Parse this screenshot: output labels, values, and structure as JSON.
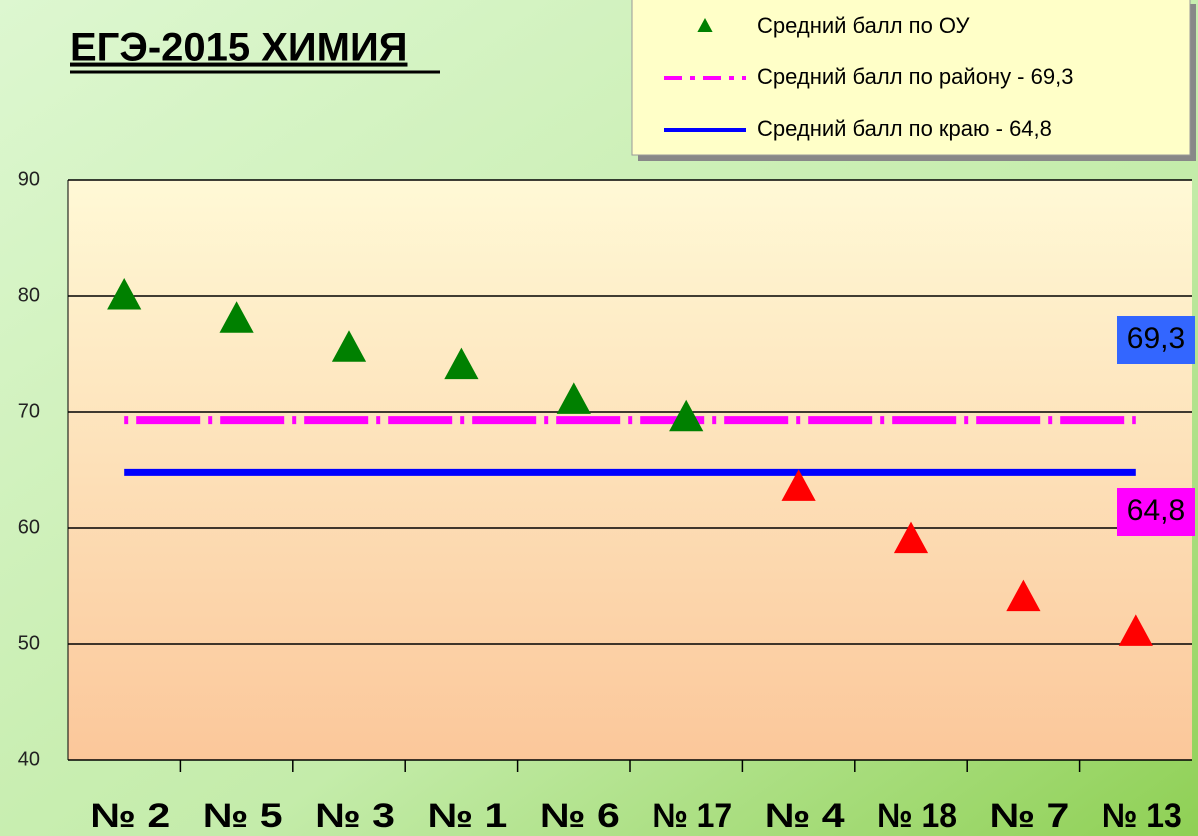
{
  "chart_data": {
    "type": "scatter",
    "title": "ЕГЭ-2015 ХИМИЯ",
    "categories": [
      "№ 2",
      "№ 5",
      "№ 3",
      "№ 1",
      "№ 6",
      "№ 17",
      "№ 4",
      "№ 18",
      "№ 7",
      "№ 13"
    ],
    "series": [
      {
        "name": "Средний балл по ОУ",
        "color": "#008000",
        "colors": [
          "#008000",
          "#008000",
          "#008000",
          "#008000",
          "#008000",
          "#008000",
          "#ff0000",
          "#ff0000",
          "#ff0000",
          "#ff0000"
        ],
        "values": [
          80,
          78,
          75.5,
          74,
          71,
          69.5,
          63.5,
          59,
          54,
          51
        ]
      }
    ],
    "reference_lines": [
      {
        "name": "Средний балл по району  - 69,3",
        "value": 69.3,
        "value_label": "69,3",
        "color": "#ff00ff",
        "style": "dashdot",
        "label_background": "#3366ff"
      },
      {
        "name": "Средний балл по краю - 64,8",
        "value": 64.8,
        "value_label": "64,8",
        "color": "#0000ff",
        "style": "solid",
        "label_background": "#ff00ff"
      }
    ],
    "ylim": [
      40,
      90
    ],
    "yticks": [
      40,
      50,
      60,
      70,
      80,
      90
    ],
    "grid": true
  }
}
